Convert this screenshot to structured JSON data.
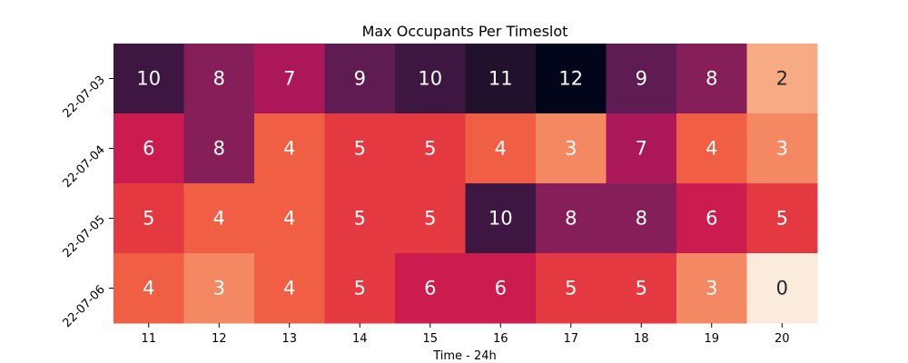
{
  "chart_data": {
    "type": "heatmap",
    "title": "Max Occupants Per Timeslot",
    "xlabel": "Time - 24h",
    "ylabel": "",
    "x_categories": [
      "11",
      "12",
      "13",
      "14",
      "15",
      "16",
      "17",
      "18",
      "19",
      "20"
    ],
    "y_categories": [
      "22-07-03",
      "22-07-04",
      "22-07-05",
      "22-07-06"
    ],
    "values": [
      [
        10,
        8,
        7,
        9,
        10,
        11,
        12,
        9,
        8,
        2
      ],
      [
        6,
        8,
        4,
        5,
        5,
        4,
        3,
        7,
        4,
        3
      ],
      [
        5,
        4,
        4,
        5,
        5,
        10,
        8,
        8,
        6,
        5
      ],
      [
        4,
        3,
        4,
        5,
        6,
        6,
        5,
        5,
        3,
        0
      ]
    ],
    "value_range": [
      0,
      12
    ],
    "colormap": "rocket_r",
    "colorbar": false,
    "annotated": true,
    "grid": false
  }
}
